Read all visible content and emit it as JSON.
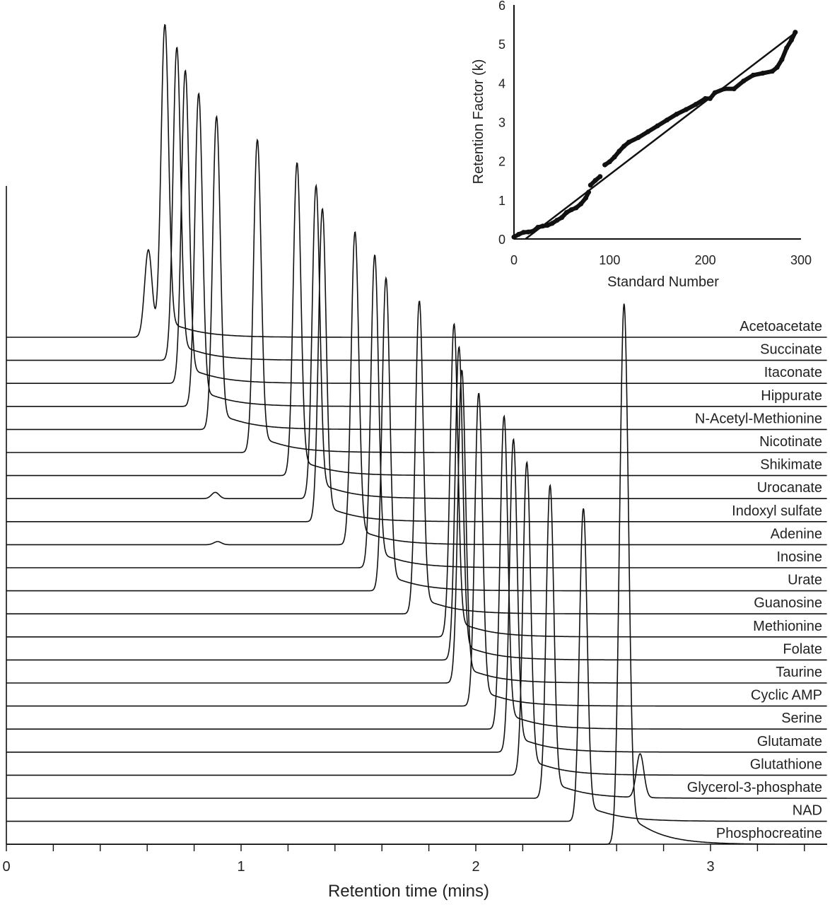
{
  "chart_data": [
    {
      "type": "line",
      "subtype": "stacked chromatograms",
      "xlabel": "Retention time (mins)",
      "ylabel": "",
      "xlim": [
        0,
        3.5
      ],
      "xticks": [
        0,
        1,
        2,
        3
      ],
      "minor_tick_step": 0.2,
      "grid": false,
      "peak_height_normalized": 1,
      "series": [
        {
          "name": "Acetoacetate",
          "retention_time": 0.675,
          "secondary_peaks": [
            {
              "time": 0.605,
              "height": 0.28
            }
          ]
        },
        {
          "name": "Succinate",
          "retention_time": 0.726
        },
        {
          "name": "Itaconate",
          "retention_time": 0.762
        },
        {
          "name": "Hippurate",
          "retention_time": 0.819
        },
        {
          "name": "N-Acetyl-Methionine",
          "retention_time": 0.895
        },
        {
          "name": "Nicotinate",
          "retention_time": 1.069
        },
        {
          "name": "Shikimate",
          "retention_time": 1.238
        },
        {
          "name": "Urocanate",
          "retention_time": 1.319,
          "secondary_peaks": [
            {
              "time": 0.89,
              "height": 0.02
            }
          ]
        },
        {
          "name": "Indoxyl sulfate",
          "retention_time": 1.346
        },
        {
          "name": "Adenine",
          "retention_time": 1.485,
          "secondary_peaks": [
            {
              "time": 0.9,
              "height": 0.01
            }
          ]
        },
        {
          "name": "Inosine",
          "retention_time": 1.569
        },
        {
          "name": "Urate",
          "retention_time": 1.617
        },
        {
          "name": "Guanosine",
          "retention_time": 1.759
        },
        {
          "name": "Methionine",
          "retention_time": 1.907
        },
        {
          "name": "Folate",
          "retention_time": 1.928
        },
        {
          "name": "Taurine",
          "retention_time": 1.94
        },
        {
          "name": "Cyclic AMP",
          "retention_time": 2.012
        },
        {
          "name": "Serine",
          "retention_time": 2.12
        },
        {
          "name": "Glutamate",
          "retention_time": 2.16
        },
        {
          "name": "Glutathione",
          "retention_time": 2.217
        },
        {
          "name": "Glycerol-3-phosphate",
          "retention_time": 2.316,
          "secondary_peaks": [
            {
              "time": 2.7,
              "height": 0.14
            }
          ]
        },
        {
          "name": "NAD",
          "retention_time": 2.458
        },
        {
          "name": "Phosphocreatine",
          "retention_time": 2.623,
          "secondary_peaks": [
            {
              "time": 2.64,
              "height": 0.97
            }
          ]
        }
      ]
    },
    {
      "type": "scatter",
      "xlabel": "Standard Number",
      "ylabel": "Retention Factor (k)",
      "xlim": [
        0,
        300
      ],
      "ylim": [
        0,
        6
      ],
      "xticks": [
        0,
        100,
        200,
        300
      ],
      "yticks": [
        0,
        1,
        2,
        3,
        4,
        5,
        6
      ],
      "grid": false,
      "fit_line": {
        "x": [
          12,
          292
        ],
        "y": [
          0,
          5.25
        ]
      },
      "points": {
        "x": [
          0,
          5,
          10,
          15,
          20,
          25,
          30,
          35,
          40,
          45,
          50,
          55,
          60,
          65,
          70,
          75,
          78,
          80,
          85,
          90,
          95,
          100,
          105,
          110,
          115,
          120,
          130,
          140,
          150,
          160,
          170,
          180,
          190,
          200,
          205,
          210,
          220,
          230,
          240,
          250,
          260,
          270,
          275,
          280,
          285,
          290,
          294
        ],
        "y": [
          0.05,
          0.12,
          0.17,
          0.18,
          0.2,
          0.3,
          0.33,
          0.35,
          0.4,
          0.48,
          0.55,
          0.68,
          0.75,
          0.8,
          0.9,
          1.05,
          1.2,
          1.38,
          1.5,
          1.6,
          1.9,
          1.98,
          2.1,
          2.25,
          2.38,
          2.48,
          2.6,
          2.75,
          2.9,
          3.05,
          3.2,
          3.32,
          3.45,
          3.6,
          3.6,
          3.75,
          3.85,
          3.85,
          4.05,
          4.2,
          4.25,
          4.3,
          4.4,
          4.6,
          4.9,
          5.1,
          5.3
        ]
      }
    }
  ]
}
